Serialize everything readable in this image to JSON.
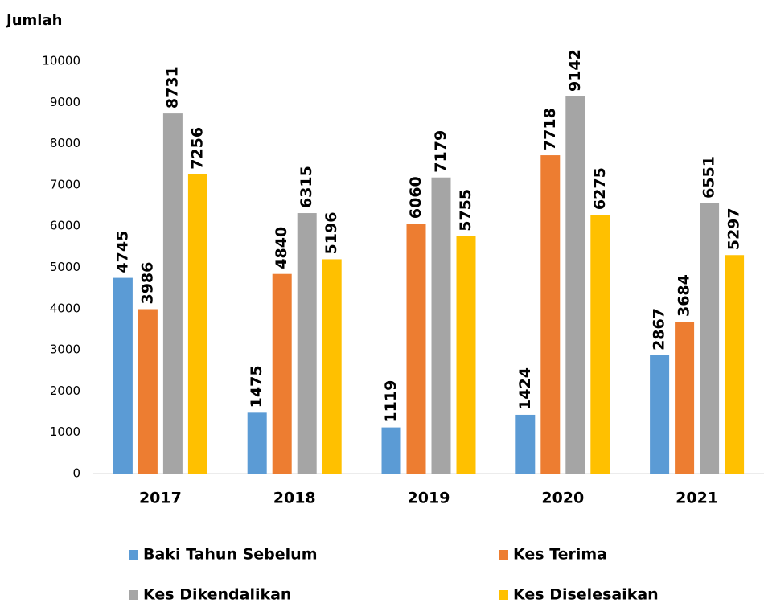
{
  "chart_data": {
    "type": "bar",
    "y_label": "Jumlah",
    "categories": [
      "2017",
      "2018",
      "2019",
      "2020",
      "2021"
    ],
    "series": [
      {
        "name": "Baki Tahun Sebelum",
        "color": "#5b9bd5",
        "values": [
          4745,
          1475,
          1119,
          1424,
          2867
        ]
      },
      {
        "name": "Kes Terima",
        "color": "#ed7d31",
        "values": [
          3986,
          4840,
          6060,
          7718,
          3684
        ]
      },
      {
        "name": "Kes Dikendalikan",
        "color": "#a5a5a5",
        "values": [
          8731,
          6315,
          7179,
          9142,
          6551
        ]
      },
      {
        "name": "Kes Diselesaikan",
        "color": "#ffc000",
        "values": [
          7256,
          5196,
          5755,
          6275,
          5297
        ]
      }
    ],
    "ylim": [
      0,
      10000
    ],
    "yticks": [
      0,
      1000,
      2000,
      3000,
      4000,
      5000,
      6000,
      7000,
      8000,
      9000,
      10000
    ],
    "grid": false,
    "legend": "bottom"
  }
}
